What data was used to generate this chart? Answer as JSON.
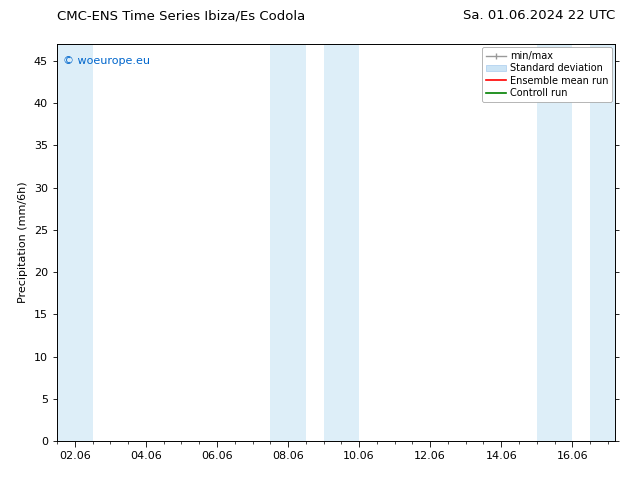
{
  "title": "CMC-ENS Time Series Ibiza/Es Codola",
  "title_right": "Sa. 01.06.2024 22 UTC",
  "ylabel": "Precipitation (mm/6h)",
  "watermark": "© woeurope.eu",
  "xticklabels": [
    "02.06",
    "04.06",
    "06.06",
    "08.06",
    "10.06",
    "12.06",
    "14.06",
    "16.06"
  ],
  "xtick_positions": [
    2,
    4,
    6,
    8,
    10,
    12,
    14,
    16
  ],
  "xlim": [
    1.5,
    17.2
  ],
  "ylim": [
    0,
    47
  ],
  "yticks": [
    0,
    5,
    10,
    15,
    20,
    25,
    30,
    35,
    40,
    45
  ],
  "bg_color": "#ffffff",
  "plot_bg_color": "#ffffff",
  "shaded_regions": [
    {
      "xmin": 1.5,
      "xmax": 2.5,
      "color": "#ddeef8"
    },
    {
      "xmin": 7.5,
      "xmax": 8.5,
      "color": "#ddeef8"
    },
    {
      "xmin": 9.0,
      "xmax": 10.0,
      "color": "#ddeef8"
    },
    {
      "xmin": 15.0,
      "xmax": 16.0,
      "color": "#ddeef8"
    },
    {
      "xmin": 16.5,
      "xmax": 17.2,
      "color": "#ddeef8"
    }
  ],
  "legend_items": [
    {
      "label": "min/max",
      "color": "#b0b0b0",
      "lw": 1.2
    },
    {
      "label": "Standard deviation",
      "color": "#cce4f5",
      "lw": 8
    },
    {
      "label": "Ensemble mean run",
      "color": "#ff0000",
      "lw": 1.2
    },
    {
      "label": "Controll run",
      "color": "#008000",
      "lw": 1.2
    }
  ],
  "font_size_title": 9.5,
  "font_size_axis": 8,
  "font_size_legend": 7,
  "font_size_watermark": 8,
  "fig_width": 6.34,
  "fig_height": 4.9,
  "dpi": 100
}
